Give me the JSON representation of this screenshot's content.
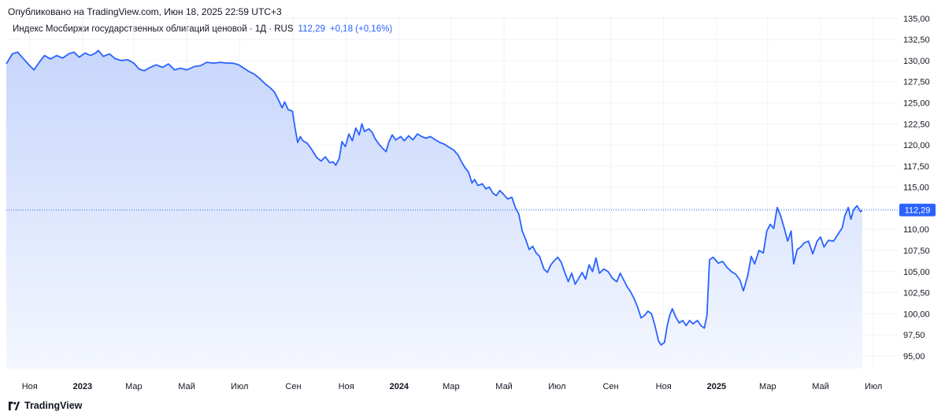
{
  "header": {
    "published": "Опубликовано на TradingView.com, Июн 18, 2025 22:59 UTC+3"
  },
  "legend": {
    "symbol": "Индекс Мосбиржи государственных облигаций ценовой · 1Д · RUS",
    "last": "112,29",
    "change": "+0,18 (+0,16%)"
  },
  "footer": {
    "brand": "TradingView"
  },
  "colors": {
    "line": "#2962ff",
    "fill_top": "#c7d6fb",
    "fill_bottom": "#f4f7ff",
    "grid": "#f0f3fa",
    "last_label_bg": "#2962ff"
  },
  "chart_data": {
    "type": "area",
    "title": "Индекс Мосбиржи государственных облигаций ценовой · 1Д · RUS",
    "ylim": [
      93.5,
      135.5
    ],
    "y_ticks": [
      "135,00",
      "132,50",
      "130,00",
      "127,50",
      "125,00",
      "122,50",
      "120,00",
      "117,50",
      "115,00",
      "112,50",
      "110,00",
      "107,50",
      "105,00",
      "102,50",
      "100,00",
      "97,50",
      "95,00"
    ],
    "y_tick_values": [
      135,
      132.5,
      130,
      127.5,
      125,
      122.5,
      120,
      117.5,
      115,
      112.5,
      110,
      107.5,
      105,
      102.5,
      100,
      97.5,
      95
    ],
    "x_ticks": [
      {
        "label": "Ноя",
        "x": "2022-11-01",
        "bold": false
      },
      {
        "label": "2023",
        "x": "2023-01-01",
        "bold": true
      },
      {
        "label": "Мар",
        "x": "2023-03-01",
        "bold": false
      },
      {
        "label": "Май",
        "x": "2023-05-01",
        "bold": false
      },
      {
        "label": "Июл",
        "x": "2023-07-01",
        "bold": false
      },
      {
        "label": "Сен",
        "x": "2023-09-01",
        "bold": false
      },
      {
        "label": "Ноя",
        "x": "2023-11-01",
        "bold": false
      },
      {
        "label": "2024",
        "x": "2024-01-01",
        "bold": true
      },
      {
        "label": "Мар",
        "x": "2024-03-01",
        "bold": false
      },
      {
        "label": "Май",
        "x": "2024-05-01",
        "bold": false
      },
      {
        "label": "Июл",
        "x": "2024-07-01",
        "bold": false
      },
      {
        "label": "Сен",
        "x": "2024-09-01",
        "bold": false
      },
      {
        "label": "Ноя",
        "x": "2024-11-01",
        "bold": false
      },
      {
        "label": "2025",
        "x": "2025-01-01",
        "bold": true
      },
      {
        "label": "Мар",
        "x": "2025-03-01",
        "bold": false
      },
      {
        "label": "Май",
        "x": "2025-05-01",
        "bold": false
      },
      {
        "label": "Июл",
        "x": "2025-07-01",
        "bold": false
      }
    ],
    "last_value": 112.29,
    "last_label": "112,29",
    "series": [
      {
        "points": [
          [
            "2022-10-05",
            129.6
          ],
          [
            "2022-10-12",
            130.8
          ],
          [
            "2022-10-18",
            131.0
          ],
          [
            "2022-10-25",
            130.2
          ],
          [
            "2022-11-01",
            129.4
          ],
          [
            "2022-11-06",
            128.9
          ],
          [
            "2022-11-12",
            129.8
          ],
          [
            "2022-11-18",
            130.6
          ],
          [
            "2022-11-25",
            130.2
          ],
          [
            "2022-12-02",
            130.6
          ],
          [
            "2022-12-09",
            130.3
          ],
          [
            "2022-12-16",
            130.8
          ],
          [
            "2022-12-22",
            131.0
          ],
          [
            "2022-12-28",
            130.4
          ],
          [
            "2023-01-04",
            130.9
          ],
          [
            "2023-01-10",
            130.6
          ],
          [
            "2023-01-16",
            130.9
          ],
          [
            "2023-01-19",
            131.2
          ],
          [
            "2023-01-25",
            130.5
          ],
          [
            "2023-02-01",
            130.8
          ],
          [
            "2023-02-08",
            130.2
          ],
          [
            "2023-02-15",
            130.0
          ],
          [
            "2023-02-22",
            130.1
          ],
          [
            "2023-03-01",
            129.7
          ],
          [
            "2023-03-07",
            129.0
          ],
          [
            "2023-03-13",
            128.8
          ],
          [
            "2023-03-20",
            129.2
          ],
          [
            "2023-03-27",
            129.5
          ],
          [
            "2023-04-03",
            129.2
          ],
          [
            "2023-04-10",
            129.6
          ],
          [
            "2023-04-17",
            128.9
          ],
          [
            "2023-04-24",
            129.1
          ],
          [
            "2023-05-01",
            128.9
          ],
          [
            "2023-05-10",
            129.3
          ],
          [
            "2023-05-17",
            129.4
          ],
          [
            "2023-05-24",
            129.8
          ],
          [
            "2023-06-01",
            129.7
          ],
          [
            "2023-06-09",
            129.8
          ],
          [
            "2023-06-16",
            129.7
          ],
          [
            "2023-06-23",
            129.7
          ],
          [
            "2023-06-30",
            129.5
          ],
          [
            "2023-07-06",
            129.1
          ],
          [
            "2023-07-12",
            128.7
          ],
          [
            "2023-07-18",
            128.4
          ],
          [
            "2023-07-25",
            127.8
          ],
          [
            "2023-07-31",
            127.2
          ],
          [
            "2023-08-05",
            126.8
          ],
          [
            "2023-08-10",
            126.3
          ],
          [
            "2023-08-15",
            125.3
          ],
          [
            "2023-08-19",
            124.4
          ],
          [
            "2023-08-22",
            125.1
          ],
          [
            "2023-08-26",
            124.2
          ],
          [
            "2023-08-31",
            124.0
          ],
          [
            "2023-09-03",
            122.0
          ],
          [
            "2023-09-06",
            120.3
          ],
          [
            "2023-09-09",
            121.0
          ],
          [
            "2023-09-12",
            120.5
          ],
          [
            "2023-09-17",
            120.2
          ],
          [
            "2023-09-22",
            119.5
          ],
          [
            "2023-09-28",
            118.5
          ],
          [
            "2023-10-03",
            118.1
          ],
          [
            "2023-10-08",
            118.6
          ],
          [
            "2023-10-13",
            117.9
          ],
          [
            "2023-10-17",
            118.0
          ],
          [
            "2023-10-20",
            117.6
          ],
          [
            "2023-10-24",
            118.4
          ],
          [
            "2023-10-27",
            120.4
          ],
          [
            "2023-10-31",
            119.8
          ],
          [
            "2023-11-04",
            121.3
          ],
          [
            "2023-11-08",
            120.5
          ],
          [
            "2023-11-12",
            122.0
          ],
          [
            "2023-11-16",
            121.2
          ],
          [
            "2023-11-19",
            122.5
          ],
          [
            "2023-11-22",
            121.6
          ],
          [
            "2023-11-27",
            121.9
          ],
          [
            "2023-12-01",
            121.5
          ],
          [
            "2023-12-04",
            120.8
          ],
          [
            "2023-12-08",
            120.2
          ],
          [
            "2023-12-13",
            119.6
          ],
          [
            "2023-12-17",
            119.2
          ],
          [
            "2023-12-20",
            120.3
          ],
          [
            "2023-12-24",
            121.2
          ],
          [
            "2023-12-28",
            120.6
          ],
          [
            "2024-01-03",
            121.0
          ],
          [
            "2024-01-07",
            120.5
          ],
          [
            "2024-01-12",
            121.1
          ],
          [
            "2024-01-17",
            120.6
          ],
          [
            "2024-01-22",
            121.3
          ],
          [
            "2024-01-27",
            121.0
          ],
          [
            "2024-02-01",
            120.8
          ],
          [
            "2024-02-06",
            121.0
          ],
          [
            "2024-02-12",
            120.6
          ],
          [
            "2024-02-17",
            120.3
          ],
          [
            "2024-02-22",
            120.1
          ],
          [
            "2024-02-28",
            119.7
          ],
          [
            "2024-03-04",
            119.4
          ],
          [
            "2024-03-09",
            118.8
          ],
          [
            "2024-03-13",
            118.0
          ],
          [
            "2024-03-17",
            117.3
          ],
          [
            "2024-03-21",
            116.8
          ],
          [
            "2024-03-25",
            115.5
          ],
          [
            "2024-03-28",
            115.9
          ],
          [
            "2024-04-01",
            115.2
          ],
          [
            "2024-04-06",
            115.4
          ],
          [
            "2024-04-10",
            114.8
          ],
          [
            "2024-04-14",
            115.0
          ],
          [
            "2024-04-18",
            114.3
          ],
          [
            "2024-04-22",
            114.0
          ],
          [
            "2024-04-26",
            114.6
          ],
          [
            "2024-04-30",
            114.2
          ],
          [
            "2024-05-05",
            113.6
          ],
          [
            "2024-05-10",
            113.8
          ],
          [
            "2024-05-14",
            112.6
          ],
          [
            "2024-05-18",
            111.8
          ],
          [
            "2024-05-22",
            109.8
          ],
          [
            "2024-05-26",
            108.8
          ],
          [
            "2024-05-30",
            107.6
          ],
          [
            "2024-06-03",
            108.0
          ],
          [
            "2024-06-07",
            107.2
          ],
          [
            "2024-06-11",
            106.8
          ],
          [
            "2024-06-16",
            105.3
          ],
          [
            "2024-06-20",
            104.9
          ],
          [
            "2024-06-24",
            105.8
          ],
          [
            "2024-06-28",
            106.3
          ],
          [
            "2024-07-02",
            106.7
          ],
          [
            "2024-07-06",
            106.1
          ],
          [
            "2024-07-10",
            104.9
          ],
          [
            "2024-07-14",
            103.8
          ],
          [
            "2024-07-18",
            104.8
          ],
          [
            "2024-07-22",
            103.5
          ],
          [
            "2024-07-26",
            104.2
          ],
          [
            "2024-07-30",
            104.9
          ],
          [
            "2024-08-03",
            104.1
          ],
          [
            "2024-08-07",
            105.8
          ],
          [
            "2024-08-11",
            105.0
          ],
          [
            "2024-08-15",
            106.6
          ],
          [
            "2024-08-19",
            104.8
          ],
          [
            "2024-08-24",
            105.3
          ],
          [
            "2024-08-29",
            105.0
          ],
          [
            "2024-09-03",
            104.2
          ],
          [
            "2024-09-08",
            103.8
          ],
          [
            "2024-09-12",
            104.8
          ],
          [
            "2024-09-16",
            104.0
          ],
          [
            "2024-09-20",
            103.2
          ],
          [
            "2024-09-24",
            102.6
          ],
          [
            "2024-09-28",
            101.8
          ],
          [
            "2024-10-02",
            100.8
          ],
          [
            "2024-10-06",
            99.5
          ],
          [
            "2024-10-10",
            99.8
          ],
          [
            "2024-10-14",
            100.3
          ],
          [
            "2024-10-18",
            100.0
          ],
          [
            "2024-10-22",
            98.6
          ],
          [
            "2024-10-26",
            96.8
          ],
          [
            "2024-10-29",
            96.3
          ],
          [
            "2024-11-02",
            96.6
          ],
          [
            "2024-11-05",
            98.5
          ],
          [
            "2024-11-08",
            99.8
          ],
          [
            "2024-11-11",
            100.6
          ],
          [
            "2024-11-15",
            99.6
          ],
          [
            "2024-11-19",
            98.9
          ],
          [
            "2024-11-23",
            99.2
          ],
          [
            "2024-11-27",
            98.6
          ],
          [
            "2024-12-01",
            99.2
          ],
          [
            "2024-12-05",
            98.8
          ],
          [
            "2024-12-10",
            99.2
          ],
          [
            "2024-12-14",
            98.6
          ],
          [
            "2024-12-18",
            98.3
          ],
          [
            "2024-12-21",
            99.8
          ],
          [
            "2024-12-24",
            106.4
          ],
          [
            "2024-12-28",
            106.7
          ],
          [
            "2025-01-03",
            106.0
          ],
          [
            "2025-01-08",
            106.2
          ],
          [
            "2025-01-13",
            105.5
          ],
          [
            "2025-01-18",
            105.0
          ],
          [
            "2025-01-23",
            104.7
          ],
          [
            "2025-01-28",
            104.0
          ],
          [
            "2025-02-01",
            102.7
          ],
          [
            "2025-02-06",
            104.5
          ],
          [
            "2025-02-10",
            106.8
          ],
          [
            "2025-02-14",
            105.9
          ],
          [
            "2025-02-19",
            107.5
          ],
          [
            "2025-02-24",
            107.2
          ],
          [
            "2025-02-28",
            109.8
          ],
          [
            "2025-03-04",
            110.6
          ],
          [
            "2025-03-08",
            110.1
          ],
          [
            "2025-03-12",
            112.6
          ],
          [
            "2025-03-16",
            111.6
          ],
          [
            "2025-03-20",
            110.2
          ],
          [
            "2025-03-24",
            108.6
          ],
          [
            "2025-03-28",
            109.8
          ],
          [
            "2025-03-31",
            105.9
          ],
          [
            "2025-04-04",
            107.6
          ],
          [
            "2025-04-08",
            107.9
          ],
          [
            "2025-04-12",
            108.4
          ],
          [
            "2025-04-17",
            108.6
          ],
          [
            "2025-04-22",
            107.1
          ],
          [
            "2025-04-27",
            108.6
          ],
          [
            "2025-05-01",
            109.1
          ],
          [
            "2025-05-05",
            107.9
          ],
          [
            "2025-05-10",
            108.7
          ],
          [
            "2025-05-16",
            108.6
          ],
          [
            "2025-05-21",
            109.4
          ],
          [
            "2025-05-26",
            110.2
          ],
          [
            "2025-05-29",
            111.6
          ],
          [
            "2025-06-02",
            112.6
          ],
          [
            "2025-06-05",
            111.2
          ],
          [
            "2025-06-08",
            112.3
          ],
          [
            "2025-06-12",
            112.8
          ],
          [
            "2025-06-16",
            112.1
          ],
          [
            "2025-06-18",
            112.29
          ]
        ]
      }
    ]
  }
}
